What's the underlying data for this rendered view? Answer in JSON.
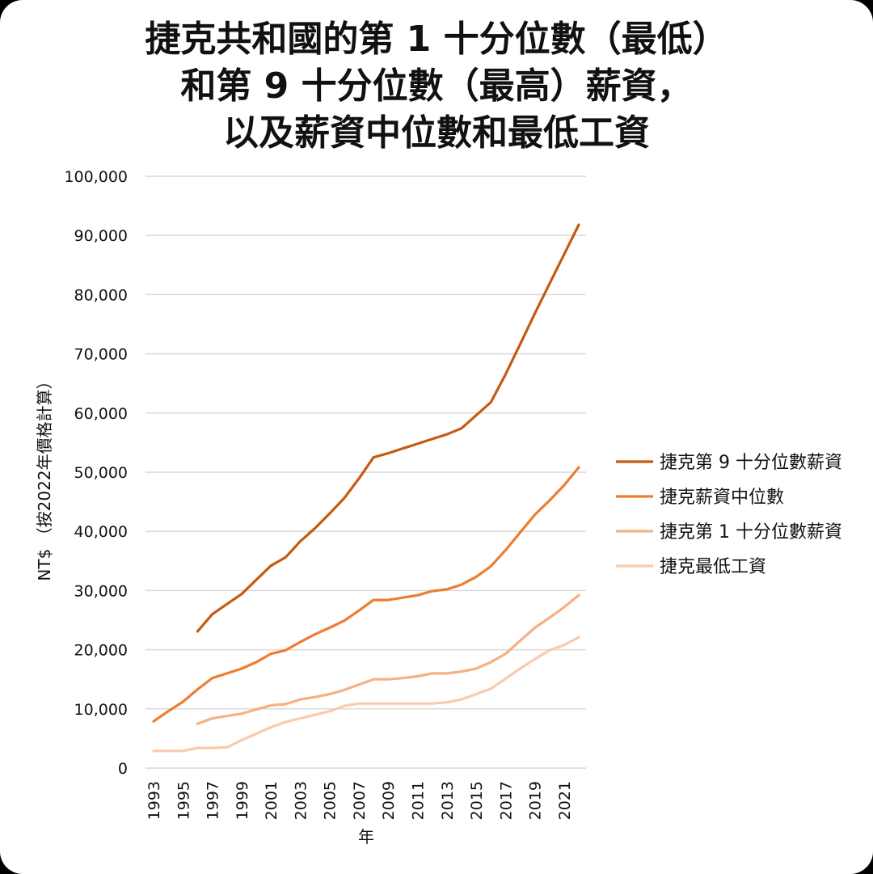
{
  "chart_data": {
    "type": "line",
    "title": [
      "捷克共和國的第 1 十分位數（最低）",
      "和第 9 十分位數（最高）薪資，",
      "以及薪資中位數和最低工資"
    ],
    "xlabel": "年",
    "ylabel": "NT$ （按2022年價格計算）",
    "ylim": [
      0,
      100000
    ],
    "yticks": [
      0,
      10000,
      20000,
      30000,
      40000,
      50000,
      60000,
      70000,
      80000,
      90000,
      100000
    ],
    "ytick_labels": [
      "0",
      "10,000",
      "20,000",
      "30,000",
      "40,000",
      "50,000",
      "60,000",
      "70,000",
      "80,000",
      "90,000",
      "100,000"
    ],
    "xlim": [
      1993,
      2022
    ],
    "xtick_labels": [
      "1993",
      "1995",
      "1997",
      "1999",
      "2001",
      "2003",
      "2005",
      "2007",
      "2009",
      "2011",
      "2013",
      "2015",
      "2017",
      "2019",
      "2021"
    ],
    "grid": "horizontal",
    "legend": "right",
    "series": [
      {
        "name": "捷克第 9 十分位數薪資",
        "color": "#c55a11",
        "x": [
          1996,
          1997,
          1998,
          1999,
          2000,
          2001,
          2002,
          2003,
          2004,
          2005,
          2006,
          2007,
          2008,
          2009,
          2010,
          2011,
          2012,
          2013,
          2014,
          2015,
          2016,
          2017,
          2018,
          2019,
          2020,
          2021,
          2022
        ],
        "values": [
          23100,
          26000,
          27700,
          29400,
          31800,
          34200,
          35600,
          38300,
          40500,
          43000,
          45600,
          48900,
          52500,
          53200,
          54000,
          54800,
          55600,
          56400,
          57400,
          59600,
          61800,
          66500,
          71600,
          76800,
          81800,
          86800,
          91800
        ]
      },
      {
        "name": "捷克薪資中位數",
        "color": "#ed7d31",
        "x": [
          1993,
          1994,
          1995,
          1996,
          1997,
          1998,
          1999,
          2000,
          2001,
          2002,
          2003,
          2004,
          2005,
          2006,
          2007,
          2008,
          2009,
          2010,
          2011,
          2012,
          2013,
          2014,
          2015,
          2016,
          2017,
          2018,
          2019,
          2020,
          2021,
          2022
        ],
        "values": [
          7900,
          9600,
          11200,
          13300,
          15200,
          16000,
          16800,
          17900,
          19300,
          19900,
          21300,
          22600,
          23700,
          24900,
          26600,
          28400,
          28400,
          28800,
          29200,
          29900,
          30200,
          31000,
          32300,
          34100,
          36800,
          39800,
          42800,
          45200,
          47800,
          50800
        ]
      },
      {
        "name": "捷克第 1 十分位數薪資",
        "color": "#f4b183",
        "x": [
          1996,
          1997,
          1998,
          1999,
          2000,
          2001,
          2002,
          2003,
          2004,
          2005,
          2006,
          2007,
          2008,
          2009,
          2010,
          2011,
          2012,
          2013,
          2014,
          2015,
          2016,
          2017,
          2018,
          2019,
          2020,
          2021,
          2022
        ],
        "values": [
          7500,
          8400,
          8800,
          9200,
          9900,
          10600,
          10800,
          11600,
          12000,
          12500,
          13200,
          14100,
          15000,
          15000,
          15200,
          15500,
          16000,
          16000,
          16300,
          16800,
          17900,
          19300,
          21500,
          23700,
          25400,
          27200,
          29200
        ]
      },
      {
        "name": "捷克最低工資",
        "color": "#f8cbad",
        "x": [
          1993,
          1994,
          1995,
          1996,
          1997,
          1998,
          1999,
          2000,
          2001,
          2002,
          2003,
          2004,
          2005,
          2006,
          2007,
          2008,
          2009,
          2010,
          2011,
          2012,
          2013,
          2014,
          2015,
          2016,
          2017,
          2018,
          2019,
          2020,
          2021,
          2022
        ],
        "values": [
          2900,
          2900,
          2900,
          3400,
          3400,
          3500,
          4700,
          5800,
          6900,
          7800,
          8400,
          9000,
          9600,
          10500,
          10900,
          10900,
          10900,
          10900,
          10900,
          10900,
          11100,
          11600,
          12500,
          13400,
          15100,
          16800,
          18400,
          19900,
          20800,
          22100
        ]
      }
    ]
  }
}
